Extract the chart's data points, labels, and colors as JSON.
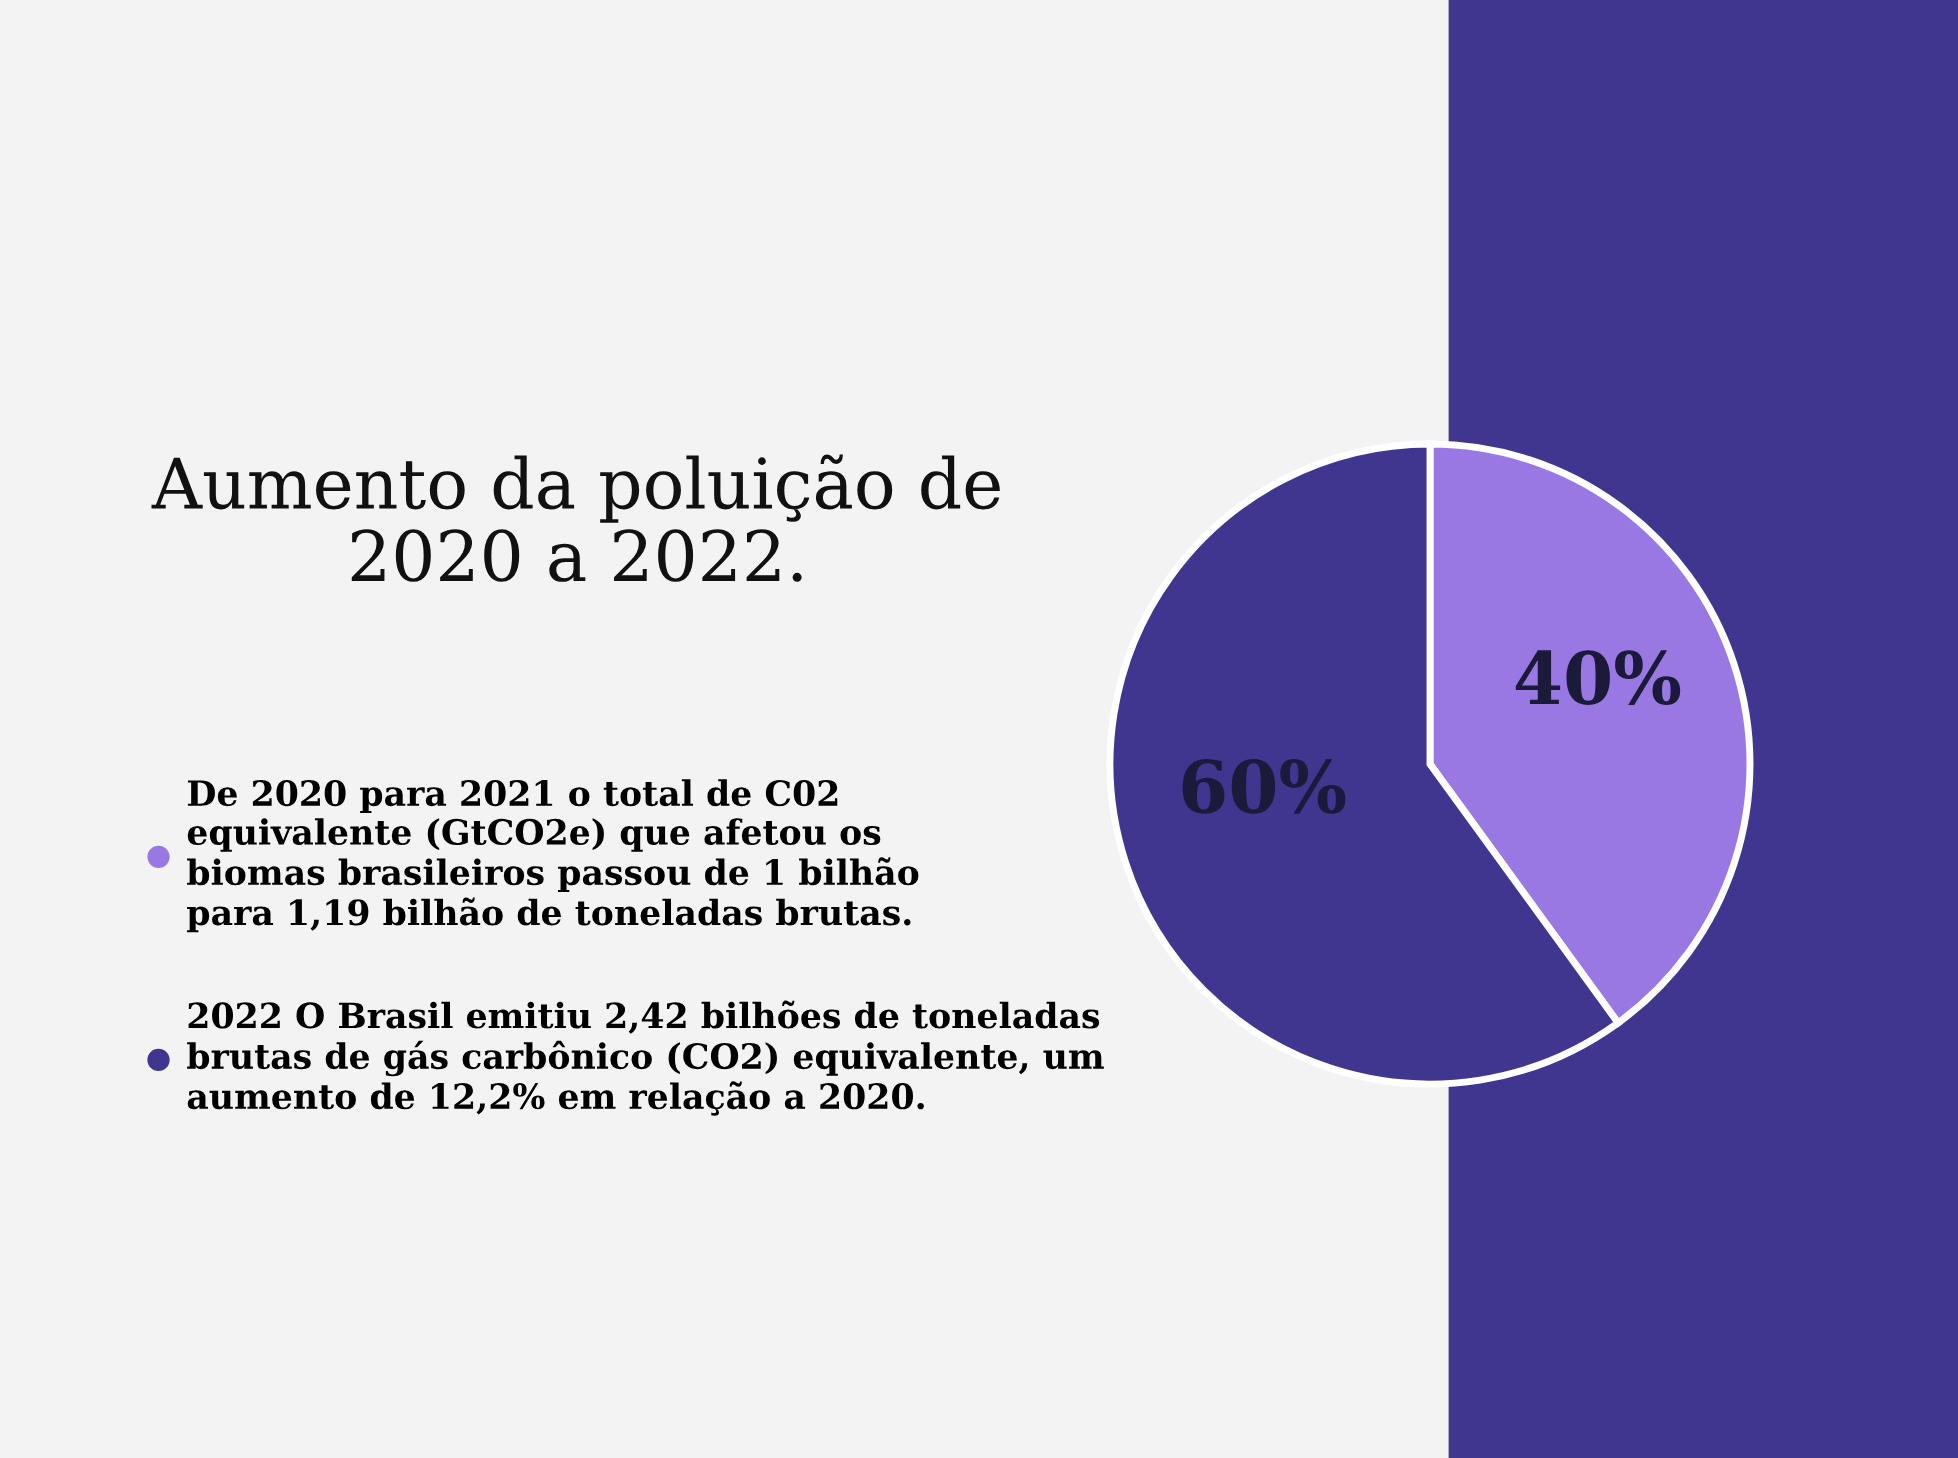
{
  "chart_data": {
    "type": "pie",
    "title": "Aumento da poluição de\n2020 a 2022.",
    "categories": [
      "De 2020 para 2021 o total de C02\nequivalente (GtCO2e) que afetou os\nbiomas brasileiros passou de 1 bilhão\npara 1,19 bilhão de toneladas brutas.",
      "2022 O Brasil emitiu 2,42 bilhões de toneladas\nbrutas de gás carbônico (CO2) equivalente, um\naumento de 12,2% em relação a 2020."
    ],
    "values": [
      40,
      60
    ],
    "colors": [
      "#9a78e3",
      "#40358f"
    ],
    "value_labels": [
      "40%",
      "60%"
    ],
    "legend": "left"
  }
}
